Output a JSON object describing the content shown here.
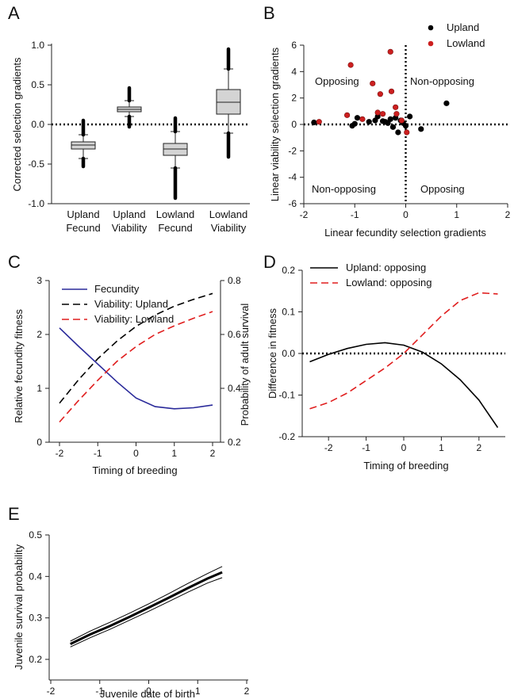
{
  "chart_data": [
    {
      "panel": "A",
      "type": "box",
      "ylabel": "Corrected selection gradients",
      "ylim": [
        -1.0,
        1.0
      ],
      "yticks": [
        "-1.0",
        "-0.5",
        "0.0",
        "0.5",
        "1.0"
      ],
      "categories": [
        [
          "Upland",
          "Fecund"
        ],
        [
          "Upland",
          "Viability"
        ],
        [
          "Lowland",
          "Fecund"
        ],
        [
          "Lowland",
          "Viability"
        ]
      ],
      "boxes": [
        {
          "q1": -0.31,
          "median": -0.26,
          "q3": -0.22,
          "whisker_low": -0.43,
          "whisker_high": -0.13,
          "outlier_low": -0.53,
          "outlier_high": 0.05
        },
        {
          "q1": 0.16,
          "median": 0.19,
          "q3": 0.22,
          "whisker_low": 0.1,
          "whisker_high": 0.3,
          "outlier_low": -0.03,
          "outlier_high": 0.46
        },
        {
          "q1": -0.39,
          "median": -0.31,
          "q3": -0.24,
          "whisker_low": -0.55,
          "whisker_high": -0.09,
          "outlier_low": -0.93,
          "outlier_high": 0.08
        },
        {
          "q1": 0.13,
          "median": 0.28,
          "q3": 0.44,
          "whisker_low": -0.11,
          "whisker_high": 0.7,
          "outlier_low": -0.41,
          "outlier_high": 0.95
        }
      ],
      "reference_line": 0.0
    },
    {
      "panel": "B",
      "type": "scatter",
      "xlabel": "Linear fecundity selection gradients",
      "ylabel": "Linear viability selection gradients",
      "xlim": [
        -2,
        2
      ],
      "ylim": [
        -6,
        6
      ],
      "xticks": [
        "-2",
        "-1",
        "0",
        "1",
        "2"
      ],
      "yticks": [
        "-6",
        "-4",
        "-2",
        "0",
        "2",
        "4",
        "6"
      ],
      "annotations": [
        "Opposing",
        "Non-opposing",
        "Non-opposing",
        "Opposing"
      ],
      "series": [
        {
          "name": "Upland",
          "color": "#000000",
          "points": [
            [
              -1.8,
              0.15
            ],
            [
              -1.05,
              -0.1
            ],
            [
              -1.0,
              0.05
            ],
            [
              -0.95,
              0.5
            ],
            [
              -0.72,
              0.2
            ],
            [
              -0.6,
              0.3
            ],
            [
              -0.55,
              0.6
            ],
            [
              -0.45,
              0.25
            ],
            [
              -0.4,
              0.2
            ],
            [
              -0.35,
              0.1
            ],
            [
              -0.3,
              0.4
            ],
            [
              -0.25,
              -0.2
            ],
            [
              -0.2,
              0.5
            ],
            [
              -0.15,
              -0.6
            ],
            [
              -0.1,
              0.3
            ],
            [
              -0.05,
              0.1
            ],
            [
              0.0,
              -0.1
            ],
            [
              0.08,
              0.6
            ],
            [
              0.3,
              -0.35
            ],
            [
              0.8,
              1.6
            ]
          ]
        },
        {
          "name": "Lowland",
          "color": "#cc1f1f",
          "points": [
            [
              -1.7,
              0.2
            ],
            [
              -1.15,
              0.7
            ],
            [
              -1.08,
              4.5
            ],
            [
              -0.85,
              0.4
            ],
            [
              -0.65,
              3.1
            ],
            [
              -0.55,
              0.9
            ],
            [
              -0.5,
              2.3
            ],
            [
              -0.45,
              0.8
            ],
            [
              -0.3,
              5.5
            ],
            [
              -0.28,
              2.5
            ],
            [
              -0.2,
              1.3
            ],
            [
              -0.18,
              0.8
            ],
            [
              -0.08,
              0.3
            ],
            [
              0.02,
              -0.6
            ]
          ]
        }
      ]
    },
    {
      "panel": "C",
      "type": "line",
      "xlabel": "Timing of breeding",
      "ylabel_left": "Relative fecundity fitness",
      "ylabel_right": "Probability of adult survival",
      "xlim": [
        -2,
        2
      ],
      "ylim_left": [
        0,
        3
      ],
      "ylim_right": [
        0.2,
        0.8
      ],
      "xticks": [
        "-2",
        "-1",
        "0",
        "1",
        "2"
      ],
      "yticks_left": [
        "0",
        "1",
        "2",
        "3"
      ],
      "yticks_right": [
        "0.2",
        "0.4",
        "0.6",
        "0.8"
      ],
      "x": [
        -2,
        -1.5,
        -1,
        -0.5,
        0,
        0.5,
        1,
        1.5,
        2
      ],
      "series": [
        {
          "name": "Fecundity",
          "axis": "left",
          "color": "#2a2a9a",
          "dash": "solid",
          "values": [
            2.12,
            1.78,
            1.45,
            1.12,
            0.82,
            0.66,
            0.62,
            0.64,
            0.69
          ]
        },
        {
          "name": "Viability: Upland",
          "axis": "right",
          "color": "#000000",
          "dash": "dashed",
          "values": [
            0.345,
            0.432,
            0.51,
            0.575,
            0.63,
            0.672,
            0.705,
            0.73,
            0.752
          ]
        },
        {
          "name": "Viability: Lowland",
          "axis": "right",
          "color": "#e01e1e",
          "dash": "dashed",
          "values": [
            0.275,
            0.355,
            0.43,
            0.5,
            0.555,
            0.6,
            0.632,
            0.66,
            0.685
          ]
        }
      ]
    },
    {
      "panel": "D",
      "type": "line",
      "xlabel": "Timing of breeding",
      "ylabel": "Difference in fitness",
      "xlim": [
        -2.7,
        2.7
      ],
      "ylim": [
        -0.2,
        0.2
      ],
      "xticks": [
        "-2",
        "-1",
        "0",
        "1",
        "2"
      ],
      "yticks": [
        "-0.2",
        "-0.1",
        "0.0",
        "0.1",
        "0.2"
      ],
      "x": [
        -2.5,
        -2,
        -1.5,
        -1,
        -0.5,
        0,
        0.5,
        1,
        1.5,
        2,
        2.5
      ],
      "series": [
        {
          "name": "Upland: opposing",
          "color": "#000000",
          "dash": "solid",
          "values": [
            -0.02,
            -0.002,
            0.012,
            0.022,
            0.026,
            0.02,
            0.003,
            -0.025,
            -0.063,
            -0.112,
            -0.178
          ]
        },
        {
          "name": "Lowland: opposing",
          "color": "#e01e1e",
          "dash": "dashed",
          "values": [
            -0.133,
            -0.118,
            -0.095,
            -0.065,
            -0.035,
            0.0,
            0.045,
            0.09,
            0.127,
            0.146,
            0.143
          ]
        }
      ],
      "reference_line": 0.0
    },
    {
      "panel": "E",
      "type": "line",
      "xlabel": "Juvenile date of birth",
      "ylabel": "Juvenile survival probability",
      "xlim": [
        -2,
        2
      ],
      "ylim": [
        0.2,
        0.5
      ],
      "xticks": [
        "-2",
        "-1",
        "0",
        "1",
        "2"
      ],
      "yticks": [
        "0.2",
        "0.3",
        "0.4",
        "0.5"
      ],
      "x": [
        -1.6,
        -1.2,
        -0.8,
        -0.4,
        0,
        0.4,
        0.8,
        1.2,
        1.5
      ],
      "series": [
        {
          "color": "#000000",
          "width": 3,
          "values": [
            0.237,
            0.26,
            0.28,
            0.302,
            0.325,
            0.348,
            0.372,
            0.395,
            0.41
          ]
        },
        {
          "color": "#000000",
          "width": 1,
          "values": [
            0.244,
            0.268,
            0.289,
            0.311,
            0.334,
            0.358,
            0.383,
            0.407,
            0.424
          ]
        },
        {
          "color": "#000000",
          "width": 1,
          "values": [
            0.23,
            0.252,
            0.272,
            0.294,
            0.316,
            0.339,
            0.362,
            0.384,
            0.397
          ]
        }
      ]
    }
  ],
  "panels": [
    "A",
    "B",
    "C",
    "D",
    "E"
  ]
}
